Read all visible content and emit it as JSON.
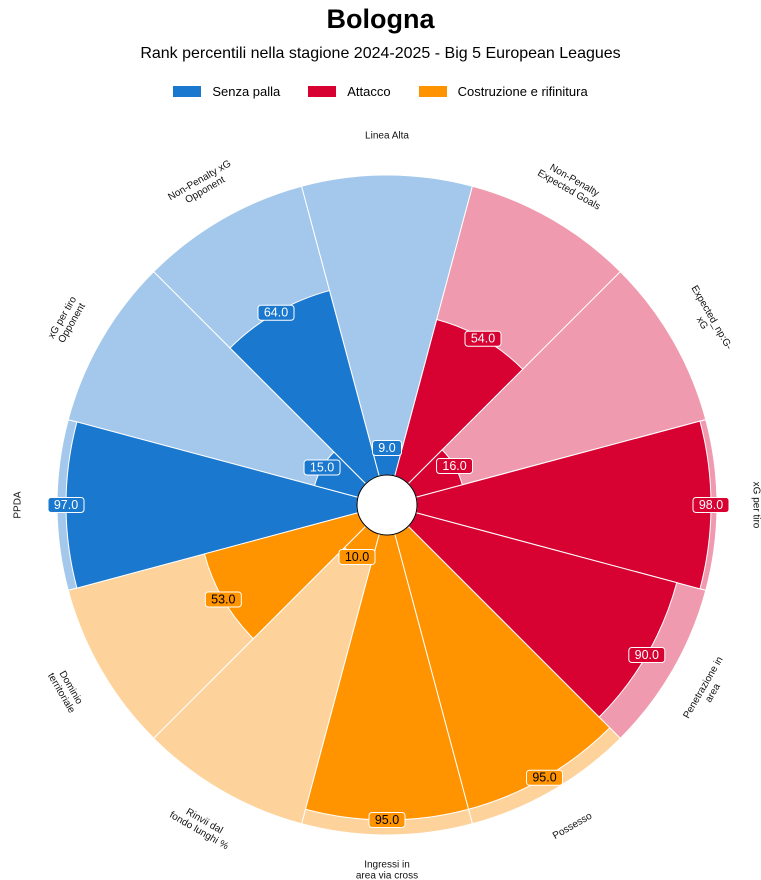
{
  "title": "Bologna",
  "subtitle": "Rank percentili nella stagione 2024-2025 - Big 5 European Leagues",
  "legend": [
    {
      "label": "Senza palla",
      "color": "#1a78cf"
    },
    {
      "label": "Attacco",
      "color": "#d70232"
    },
    {
      "label": "Costruzione e rifinitura",
      "color": "#ff9300"
    }
  ],
  "chart_data": {
    "type": "pie",
    "subtype": "radial-percentile-pizza",
    "scale": [
      0,
      100
    ],
    "groups": [
      {
        "name": "Senza palla",
        "color": "#1a78cf",
        "light_color": "#a4c8eb",
        "text_color": "#ffffff"
      },
      {
        "name": "Attacco",
        "color": "#d70232",
        "light_color": "#ef9aae",
        "text_color": "#ffffff"
      },
      {
        "name": "Costruzione e rifinitura",
        "color": "#ff9300",
        "light_color": "#fed29b",
        "text_color": "#000000"
      }
    ],
    "slices": [
      {
        "label": "PPDA",
        "label_lines": [
          "PPDA"
        ],
        "value": 97.0,
        "value_label": "97.0",
        "group": 0
      },
      {
        "label": "xG per tiro Opponent",
        "label_lines": [
          "xG per tiro",
          "Opponent"
        ],
        "value": 15.0,
        "value_label": "15.0",
        "group": 0
      },
      {
        "label": "Non-Penalty xG Opponent",
        "label_lines": [
          "Non-Penalty xG",
          "Opponent"
        ],
        "value": 64.0,
        "value_label": "64.0",
        "group": 0
      },
      {
        "label": "Linea Alta",
        "label_lines": [
          "Linea Alta"
        ],
        "value": 9.0,
        "value_label": "9.0",
        "group": 0
      },
      {
        "label": "Non-Penalty Expected Goals",
        "label_lines": [
          "Non-Penalty",
          "Expected Goals"
        ],
        "value": 54.0,
        "value_label": "54.0",
        "group": 1
      },
      {
        "label": "Expected_np:G-xG",
        "label_lines": [
          "Expected_np:G-",
          "xG"
        ],
        "value": 16.0,
        "value_label": "16.0",
        "group": 1
      },
      {
        "label": "xG per tiro",
        "label_lines": [
          "xG per tiro"
        ],
        "value": 98.0,
        "value_label": "98.0",
        "group": 1
      },
      {
        "label": "Penetrazione in area",
        "label_lines": [
          "Penetrazione in",
          "area"
        ],
        "value": 90.0,
        "value_label": "90.0",
        "group": 1
      },
      {
        "label": "Possesso",
        "label_lines": [
          "Possesso"
        ],
        "value": 95.0,
        "value_label": "95.0",
        "group": 2
      },
      {
        "label": "Ingressi in area via cross %",
        "label_lines": [
          "Ingressi in",
          "area via cross",
          "%"
        ],
        "value": 95.0,
        "value_label": "95.0",
        "group": 2
      },
      {
        "label": "Rinvii dal fondo lunghi %",
        "label_lines": [
          "Rinvii dal",
          "fondo lunghi %"
        ],
        "value": 10.0,
        "value_label": "10.0",
        "group": 2
      },
      {
        "label": "Dominio territoriale",
        "label_lines": [
          "Dominio",
          "territoriale"
        ],
        "value": 53.0,
        "value_label": "53.0",
        "group": 2
      }
    ]
  }
}
